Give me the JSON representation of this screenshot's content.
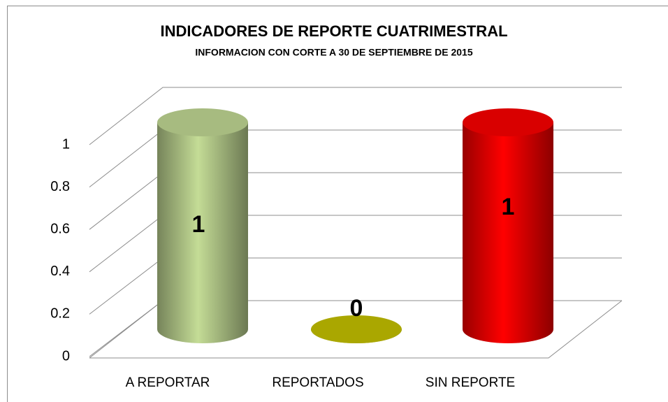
{
  "chart_data": {
    "type": "cylinder-bar",
    "title": "INDICADORES DE REPORTE CUATRIMESTRAL",
    "subtitle": "INFORMACION CON CORTE A 30 DE SEPTIEMBRE DE 2015",
    "categories": [
      "A REPORTAR",
      "REPORTADOS",
      "SIN REPORTE"
    ],
    "values": [
      1,
      0,
      1
    ],
    "colors": [
      "#c4dc96",
      "#c8c400",
      "#ff0000"
    ],
    "ylim": [
      0,
      1
    ],
    "yticks": [
      0,
      0.2,
      0.4,
      0.6,
      0.8,
      1
    ],
    "grid": true
  }
}
